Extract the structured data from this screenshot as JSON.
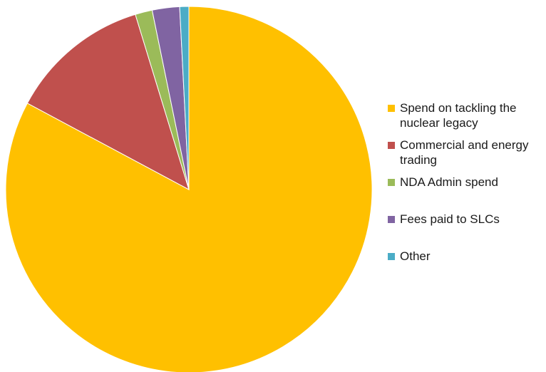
{
  "chart_data": {
    "type": "pie",
    "title": "",
    "start_angle_deg": 0,
    "direction": "clockwise",
    "slices": [
      {
        "label": "Spend on tackling the nuclear legacy",
        "value": 82.4,
        "color": "#FFC000"
      },
      {
        "label": "Commercial and energy trading",
        "value": 12.4,
        "color": "#C0504D"
      },
      {
        "label": "NDA Admin spend",
        "value": 1.5,
        "color": "#9BBB59"
      },
      {
        "label": "Fees paid to SLCs",
        "value": 2.4,
        "color": "#8064A2"
      },
      {
        "label": "Other",
        "value": 0.8,
        "color": "#4BACC6"
      }
    ],
    "legend_position": "right"
  }
}
